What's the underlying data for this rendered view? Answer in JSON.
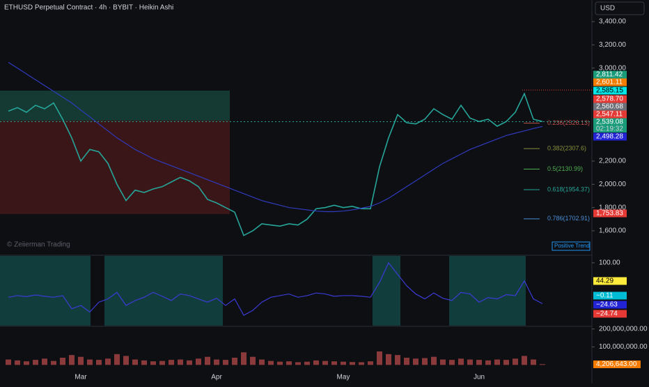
{
  "header": {
    "title": "ETHUSD Perpetual Contract · 4h · BYBIT · Heikin Ashi",
    "currency": "USD",
    "watermark": "© Zeiierman Trading",
    "signal": "Positive Trend"
  },
  "chart_data": [
    {
      "type": "line",
      "name": "price",
      "categories": [
        null,
        null,
        null,
        null,
        null,
        null,
        null,
        null,
        "Mar",
        null,
        null,
        null,
        null,
        null,
        null,
        null,
        null,
        null,
        null,
        null,
        null,
        null,
        null,
        "Apr",
        null,
        null,
        null,
        null,
        null,
        null,
        null,
        null,
        null,
        null,
        null,
        null,
        null,
        "May",
        null,
        null,
        null,
        null,
        null,
        null,
        null,
        null,
        null,
        null,
        null,
        null,
        null,
        null,
        "Jun",
        null,
        null,
        null,
        null,
        null,
        null,
        null
      ],
      "series": [
        {
          "color": "#26a69a",
          "values": [
            2630,
            2660,
            2620,
            2680,
            2650,
            2700,
            2560,
            2400,
            2200,
            2300,
            2280,
            2180,
            2000,
            1860,
            1950,
            1930,
            1960,
            1980,
            2020,
            2060,
            2030,
            1980,
            1870,
            1840,
            1800,
            1760,
            1560,
            1600,
            1660,
            1650,
            1640,
            1660,
            1650,
            1700,
            1790,
            1800,
            1820,
            1800,
            1810,
            1790,
            1790,
            2150,
            2400,
            2600,
            2530,
            2520,
            2560,
            2650,
            2600,
            2560,
            2680,
            2570,
            2540,
            2560,
            2500,
            2540,
            2620,
            2780,
            2560,
            2540
          ]
        },
        {
          "color": "#2f3bbd",
          "values": [
            3050,
            3000,
            2950,
            2900,
            2850,
            2800,
            2750,
            2700,
            2640,
            2580,
            2520,
            2460,
            2400,
            2350,
            2300,
            2260,
            2220,
            2190,
            2160,
            2130,
            2100,
            2070,
            2040,
            2010,
            1980,
            1950,
            1920,
            1890,
            1860,
            1840,
            1820,
            1800,
            1790,
            1780,
            1770,
            1765,
            1765,
            1770,
            1780,
            1795,
            1810,
            1840,
            1880,
            1930,
            1980,
            2030,
            2080,
            2130,
            2180,
            2220,
            2260,
            2300,
            2330,
            2360,
            2390,
            2420,
            2440,
            2460,
            2480,
            2498
          ]
        }
      ],
      "ylim": [
        1396,
        3586
      ],
      "yticks": [
        {
          "value": 1600,
          "label": "1,600.00"
        },
        {
          "value": 1800,
          "label": "1,800.00"
        },
        {
          "value": 2000,
          "label": "2,000.00"
        },
        {
          "value": 2200,
          "label": "2,200.00"
        },
        {
          "value": 3000,
          "label": "3,000.00"
        },
        {
          "value": 3200,
          "label": "3,200.00"
        },
        {
          "value": 3400,
          "label": "3,400.00"
        }
      ],
      "zones": [
        {
          "from": 2548,
          "to": 2806,
          "color": "#153a33"
        },
        {
          "from": 1744,
          "to": 2548,
          "color": "#3a1619"
        }
      ],
      "fib_levels": [
        {
          "price": 2526.13,
          "label": "0.236(2526.13)",
          "color": "#c0504d"
        },
        {
          "price": 2307.6,
          "label": "0.382(2307.6)",
          "color": "#8a8f3a"
        },
        {
          "price": 2130.99,
          "label": "0.5(2130.99)",
          "color": "#4caf50"
        },
        {
          "price": 1954.37,
          "label": "0.618(1954.37)",
          "color": "#26a69a"
        },
        {
          "price": 1702.91,
          "label": "0.786(1702.91)",
          "color": "#4a90d9"
        }
      ],
      "badges": [
        {
          "value": 2811.42,
          "label": "2,811.42",
          "color": "#1a9c7a"
        },
        {
          "value": 2601.11,
          "label": "2,601.11",
          "color": "#f57c00"
        },
        {
          "value": 2585.15,
          "label": "2,585.15",
          "color": "#00e5e5"
        },
        {
          "value": 2578.7,
          "label": "2,578.70",
          "color": "#e53935"
        },
        {
          "value": 2560.68,
          "label": "2,560.68",
          "color": "#6d6f78"
        },
        {
          "value": 2547.11,
          "label": "2,547.11",
          "color": "#e53935"
        },
        {
          "value": 2539.08,
          "label": "2,539.08",
          "color": "#1a9c7a"
        },
        {
          "value": 2498.28,
          "label": "2,498.28",
          "color": "#2323d6"
        },
        {
          "value": 1753.83,
          "label": "1,753.83",
          "color": "#e53935"
        }
      ],
      "countdown": "02:19:32"
    },
    {
      "type": "line",
      "name": "oscillator",
      "series": [
        {
          "color": "#3b3bd6",
          "values": [
            -5,
            0,
            -3,
            2,
            -2,
            -5,
            0,
            -40,
            -30,
            -50,
            -20,
            -10,
            10,
            -30,
            -15,
            -5,
            10,
            -2,
            -15,
            5,
            0,
            -10,
            -20,
            -8,
            -30,
            -10,
            -60,
            -45,
            -20,
            -5,
            0,
            5,
            -5,
            0,
            8,
            5,
            -2,
            0,
            0,
            -2,
            -5,
            40,
            100,
            65,
            30,
            5,
            -10,
            8,
            -8,
            -15,
            10,
            5,
            -20,
            -6,
            -10,
            3,
            0,
            45,
            -10,
            -24.63
          ]
        }
      ],
      "ylim": [
        -91.5,
        121
      ],
      "yticks": [
        {
          "value": 100,
          "label": "100.00"
        }
      ],
      "badges": [
        {
          "value": 44.29,
          "label": "44.29",
          "color": "#ffeb3b"
        },
        {
          "value": -0.11,
          "label": "−0.11",
          "color": "#00bcd4"
        },
        {
          "value": -24.63,
          "label": "−24.63",
          "color": "#2323d6"
        },
        {
          "value": -24.74,
          "label": "−24.74",
          "color": "#e53935"
        }
      ]
    },
    {
      "type": "bar",
      "name": "volume",
      "values": [
        30000000,
        25000000,
        20000000,
        28000000,
        35000000,
        22000000,
        40000000,
        55000000,
        45000000,
        30000000,
        28000000,
        35000000,
        60000000,
        50000000,
        30000000,
        25000000,
        20000000,
        22000000,
        28000000,
        30000000,
        25000000,
        35000000,
        45000000,
        30000000,
        28000000,
        40000000,
        70000000,
        45000000,
        30000000,
        22000000,
        18000000,
        20000000,
        15000000,
        18000000,
        25000000,
        22000000,
        20000000,
        18000000,
        16000000,
        15000000,
        20000000,
        75000000,
        60000000,
        55000000,
        40000000,
        35000000,
        38000000,
        45000000,
        30000000,
        28000000,
        35000000,
        30000000,
        28000000,
        25000000,
        30000000,
        28000000,
        35000000,
        50000000,
        30000000,
        4206643
      ],
      "color": "#8a3a3a",
      "ylim": [
        -26000000,
        207000000
      ],
      "yticks": [
        {
          "value": 100000000,
          "label": "100,000,000.00"
        },
        {
          "value": 200000000,
          "label": "200,000,000.00"
        }
      ],
      "last_label": "4,206,643.00"
    }
  ]
}
